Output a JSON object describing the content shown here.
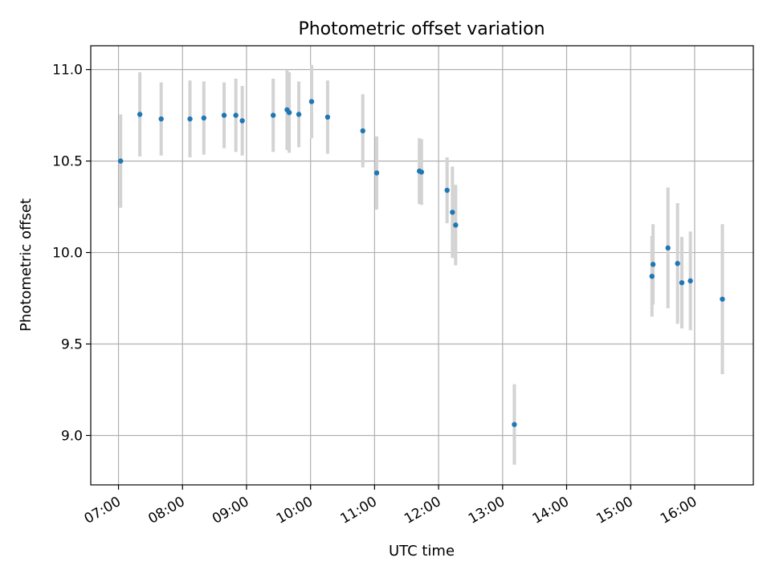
{
  "chart_data": {
    "type": "scatter",
    "title": "Photometric offset variation",
    "xlabel": "UTC time",
    "ylabel": "Photometric offset",
    "x_unit": "HH:MM",
    "xlim": [
      "06:34",
      "16:55"
    ],
    "ylim": [
      8.73,
      11.13
    ],
    "xticks": [
      "07:00",
      "08:00",
      "09:00",
      "10:00",
      "11:00",
      "12:00",
      "13:00",
      "14:00",
      "15:00",
      "16:00"
    ],
    "yticks": [
      9.0,
      9.5,
      10.0,
      10.5,
      11.0
    ],
    "ytick_labels": [
      "9.0",
      "9.5",
      "10.0",
      "10.5",
      "11.0"
    ],
    "grid": true,
    "legend": "none",
    "colors": {
      "point": "#1f77b4",
      "errorbar": "#d3d3d3",
      "grid": "#b0b0b0"
    },
    "series": [
      {
        "x": [
          "07:02",
          "07:20",
          "07:40",
          "08:07",
          "08:20",
          "08:39",
          "08:50",
          "08:56",
          "09:25",
          "09:38",
          "09:40",
          "09:49",
          "10:01",
          "10:16",
          "10:49",
          "11:02",
          "11:42",
          "11:44",
          "12:08",
          "12:13",
          "12:16",
          "13:11",
          "15:20",
          "15:21",
          "15:35",
          "15:44",
          "15:48",
          "15:56",
          "16:26"
        ],
        "y": [
          10.5,
          10.755,
          10.73,
          10.73,
          10.735,
          10.75,
          10.75,
          10.72,
          10.75,
          10.78,
          10.765,
          10.755,
          10.825,
          10.74,
          10.665,
          10.435,
          10.445,
          10.44,
          10.34,
          10.22,
          10.15,
          9.06,
          9.87,
          9.935,
          10.025,
          9.94,
          9.835,
          9.845,
          9.745
        ],
        "yerr": [
          0.255,
          0.23,
          0.2,
          0.21,
          0.2,
          0.18,
          0.2,
          0.19,
          0.2,
          0.22,
          0.22,
          0.18,
          0.2,
          0.2,
          0.2,
          0.2,
          0.18,
          0.18,
          0.18,
          0.25,
          0.22,
          0.22,
          0.22,
          0.22,
          0.33,
          0.33,
          0.25,
          0.27,
          0.41
        ]
      }
    ]
  }
}
